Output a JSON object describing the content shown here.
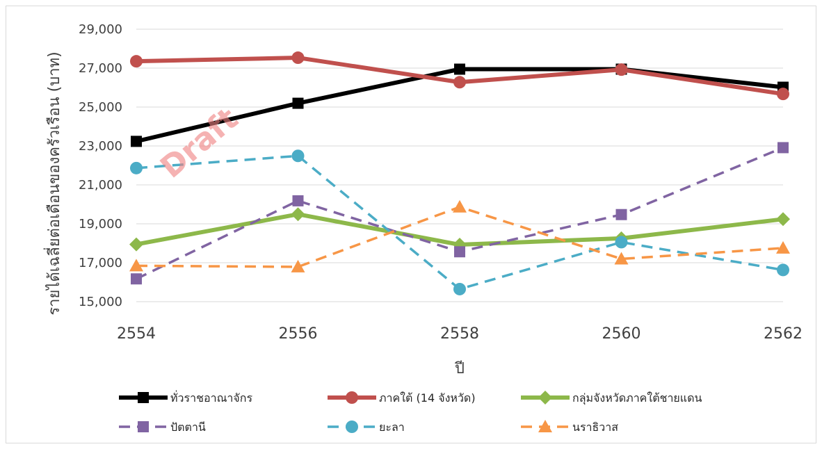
{
  "chart_data": {
    "type": "line",
    "xlabel": "ปี",
    "ylabel": "รายได้เฉลี่ยต่อเดือนของครัวเรือน (บาท)",
    "x": [
      2554,
      2556,
      2558,
      2560,
      2562
    ],
    "x_tick_labels": [
      "2554",
      "2556",
      "2558",
      "2560",
      "2562"
    ],
    "ylim": [
      15000,
      29000
    ],
    "y_ticks": [
      15000,
      17000,
      19000,
      21000,
      23000,
      25000,
      27000,
      29000
    ],
    "y_tick_labels": [
      "15,000",
      "17,000",
      "19,000",
      "21,000",
      "23,000",
      "25,000",
      "27,000",
      "29,000"
    ],
    "grid": "horizontal",
    "legend_position": "bottom",
    "watermark": "Draft",
    "series": [
      {
        "name": "ทั่วราชอาณาจักร",
        "values": [
          23236,
          25194,
          26946,
          26946,
          26018
        ],
        "color": "#000000",
        "dash": "solid",
        "marker": "square"
      },
      {
        "name": "ภาคใต้ (14 จังหวัด)",
        "values": [
          27352,
          27534,
          26276,
          26924,
          25672
        ],
        "color": "#c0504d",
        "dash": "solid",
        "marker": "circle"
      },
      {
        "name": "กลุ่มจังหวัดภาคใต้ชายแดน",
        "values": [
          17944,
          19492,
          17927,
          18255,
          19239
        ],
        "color": "#8db84a",
        "dash": "solid",
        "marker": "diamond"
      },
      {
        "name": "ปัตตานี",
        "values": [
          16170,
          20182,
          17563,
          19474,
          22913
        ],
        "color": "#8064a2",
        "dash": "dashed",
        "marker": "square"
      },
      {
        "name": "ยะลา",
        "values": [
          21863,
          22491,
          15645,
          18057,
          16628
        ],
        "color": "#4bacc6",
        "dash": "dashed",
        "marker": "circle"
      },
      {
        "name": "นราธิวาส",
        "values": [
          16844,
          16788,
          19864,
          17196,
          17753
        ],
        "color": "#f79646",
        "dash": "dashed",
        "marker": "triangle"
      }
    ]
  }
}
